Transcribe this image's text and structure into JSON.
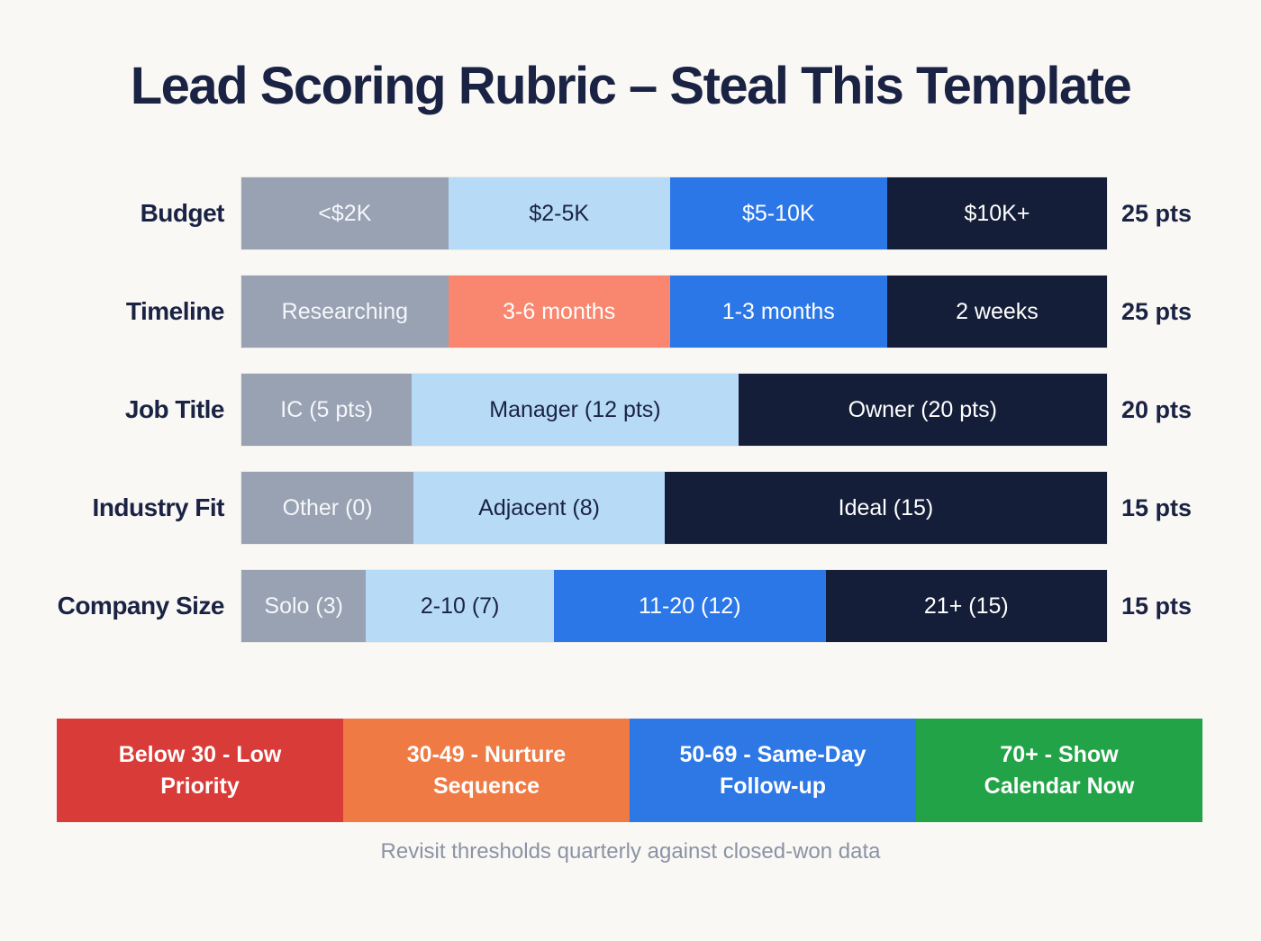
{
  "title": "Lead Scoring Rubric – Steal This Template",
  "footnote": "Revisit thresholds quarterly against closed-won data",
  "palette": {
    "gray": "#98a2b2",
    "light_blue": "#b7daf6",
    "bright_blue": "#2b77e8",
    "navy": "#141e38",
    "salmon": "#f9866f",
    "red": "#d93b38",
    "orange": "#ef7a43",
    "blue": "#2d78e4",
    "green": "#23a347",
    "text_light": "#f5f7fa",
    "text_dark": "#1a2343"
  },
  "rows": [
    {
      "label": "Budget",
      "points": "25 pts",
      "segments": [
        {
          "label": "<$2K",
          "width_pct": 23.9,
          "bg": "#98a2b2",
          "fg": "#f5f7fa"
        },
        {
          "label": "$2-5K",
          "width_pct": 25.6,
          "bg": "#b7daf6",
          "fg": "#1a2343"
        },
        {
          "label": "$5-10K",
          "width_pct": 25.1,
          "bg": "#2b77e8",
          "fg": "#ffffff"
        },
        {
          "label": "$10K+",
          "width_pct": 25.4,
          "bg": "#141e38",
          "fg": "#ffffff"
        }
      ]
    },
    {
      "label": "Timeline",
      "points": "25 pts",
      "segments": [
        {
          "label": "Researching",
          "width_pct": 23.9,
          "bg": "#98a2b2",
          "fg": "#f5f7fa"
        },
        {
          "label": "3-6 months",
          "width_pct": 25.6,
          "bg": "#f9866f",
          "fg": "#ffffff"
        },
        {
          "label": "1-3 months",
          "width_pct": 25.1,
          "bg": "#2b77e8",
          "fg": "#ffffff"
        },
        {
          "label": "2 weeks",
          "width_pct": 25.4,
          "bg": "#141e38",
          "fg": "#ffffff"
        }
      ]
    },
    {
      "label": "Job Title",
      "points": "20 pts",
      "segments": [
        {
          "label": "IC (5 pts)",
          "width_pct": 19.7,
          "bg": "#98a2b2",
          "fg": "#f5f7fa"
        },
        {
          "label": "Manager (12 pts)",
          "width_pct": 37.7,
          "bg": "#b7daf6",
          "fg": "#1a2343"
        },
        {
          "label": "Owner (20 pts)",
          "width_pct": 42.6,
          "bg": "#141e38",
          "fg": "#ffffff"
        }
      ]
    },
    {
      "label": "Industry Fit",
      "points": "15 pts",
      "segments": [
        {
          "label": "Other (0)",
          "width_pct": 19.9,
          "bg": "#98a2b2",
          "fg": "#f5f7fa"
        },
        {
          "label": "Adjacent (8)",
          "width_pct": 29.0,
          "bg": "#b7daf6",
          "fg": "#1a2343"
        },
        {
          "label": "Ideal (15)",
          "width_pct": 51.1,
          "bg": "#141e38",
          "fg": "#ffffff"
        }
      ]
    },
    {
      "label": "Company Size",
      "points": "15 pts",
      "segments": [
        {
          "label": "Solo (3)",
          "width_pct": 14.4,
          "bg": "#98a2b2",
          "fg": "#f5f7fa"
        },
        {
          "label": "2-10 (7)",
          "width_pct": 21.7,
          "bg": "#b7daf6",
          "fg": "#1a2343"
        },
        {
          "label": "11-20 (12)",
          "width_pct": 31.4,
          "bg": "#2b77e8",
          "fg": "#ffffff"
        },
        {
          "label": "21+ (15)",
          "width_pct": 32.5,
          "bg": "#141e38",
          "fg": "#ffffff"
        }
      ]
    }
  ],
  "legend": {
    "items": [
      {
        "lines": [
          "Below 30 - Low",
          "Priority"
        ],
        "bg": "#d93b38"
      },
      {
        "lines": [
          "30-49 - Nurture",
          "Sequence"
        ],
        "bg": "#ef7a43"
      },
      {
        "lines": [
          "50-69 - Same-Day",
          "Follow-up"
        ],
        "bg": "#2d78e4"
      },
      {
        "lines": [
          "70+ - Show",
          "Calendar Now"
        ],
        "bg": "#23a347"
      }
    ]
  },
  "chart_data": {
    "type": "table",
    "title": "Lead Scoring Rubric – Steal This Template",
    "criteria": [
      {
        "name": "Budget",
        "max_points": 25,
        "options": [
          "<$2K",
          "$2-5K",
          "$5-10K",
          "$10K+"
        ]
      },
      {
        "name": "Timeline",
        "max_points": 25,
        "options": [
          "Researching",
          "3-6 months",
          "1-3 months",
          "2 weeks"
        ]
      },
      {
        "name": "Job Title",
        "max_points": 20,
        "options": [
          "IC (5 pts)",
          "Manager (12 pts)",
          "Owner (20 pts)"
        ],
        "option_points": [
          5,
          12,
          20
        ]
      },
      {
        "name": "Industry Fit",
        "max_points": 15,
        "options": [
          "Other (0)",
          "Adjacent (8)",
          "Ideal (15)"
        ],
        "option_points": [
          0,
          8,
          15
        ]
      },
      {
        "name": "Company Size",
        "max_points": 15,
        "options": [
          "Solo (3)",
          "2-10 (7)",
          "11-20 (12)",
          "21+ (15)"
        ],
        "option_points": [
          3,
          7,
          12,
          15
        ]
      }
    ],
    "thresholds": [
      {
        "range": "Below 30",
        "action": "Low Priority"
      },
      {
        "range": "30-49",
        "action": "Nurture Sequence"
      },
      {
        "range": "50-69",
        "action": "Same-Day Follow-up"
      },
      {
        "range": "70+",
        "action": "Show Calendar Now"
      }
    ],
    "footnote": "Revisit thresholds quarterly against closed-won data"
  }
}
